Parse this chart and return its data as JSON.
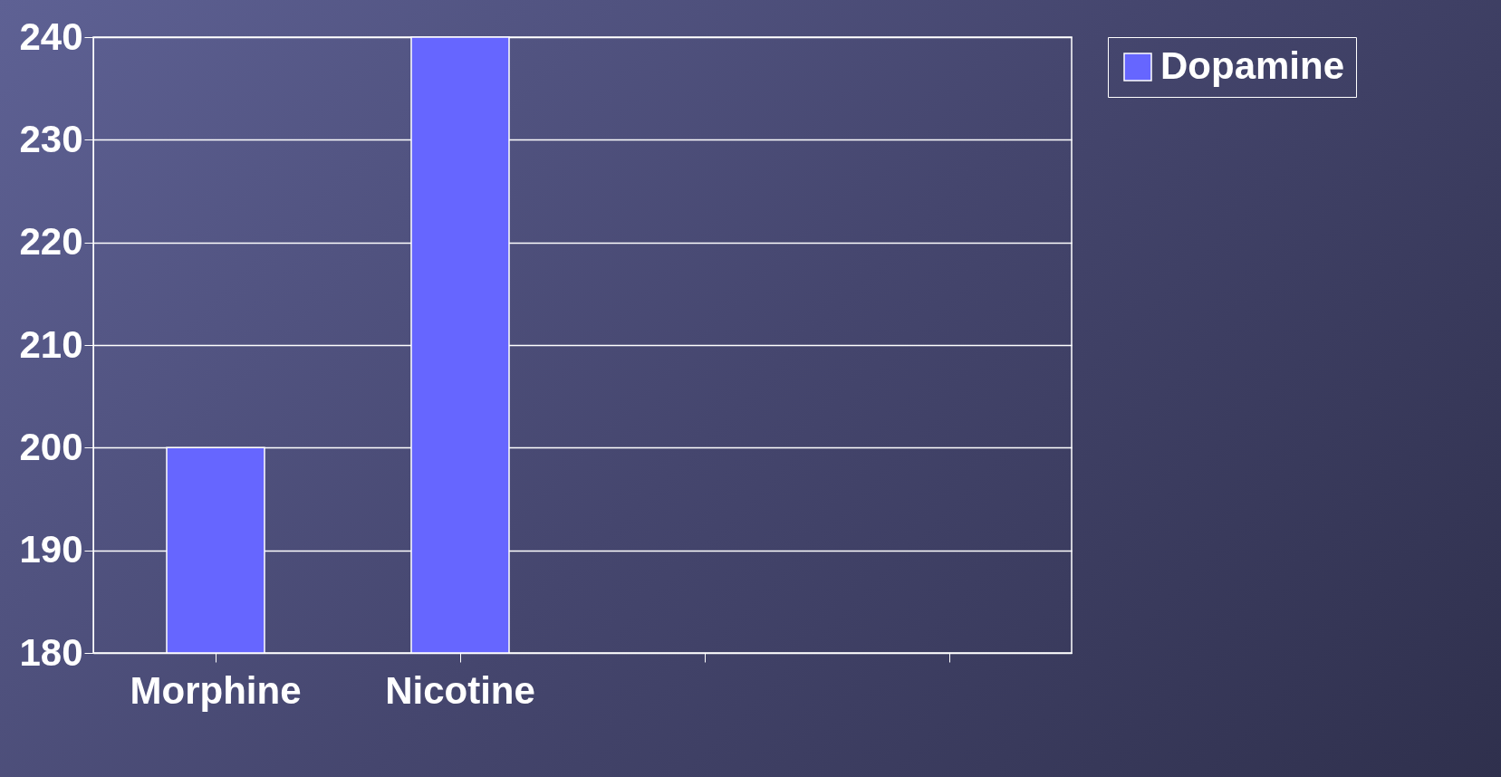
{
  "chart_data": {
    "type": "bar",
    "categories": [
      "Morphine",
      "Nicotine",
      null,
      null
    ],
    "series": [
      {
        "name": "Dopamine",
        "color": "#6666ff",
        "values": [
          200,
          240,
          null,
          null
        ]
      }
    ],
    "ylim": [
      180,
      240
    ],
    "yticks": [
      180,
      190,
      200,
      210,
      220,
      230,
      240
    ],
    "grid": "y",
    "legend": "right"
  }
}
